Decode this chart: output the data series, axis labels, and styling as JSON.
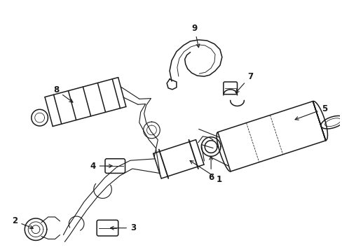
{
  "background_color": "#ffffff",
  "line_color": "#1a1a1a",
  "fig_width": 4.89,
  "fig_height": 3.6,
  "label_fontsize": 8.5
}
